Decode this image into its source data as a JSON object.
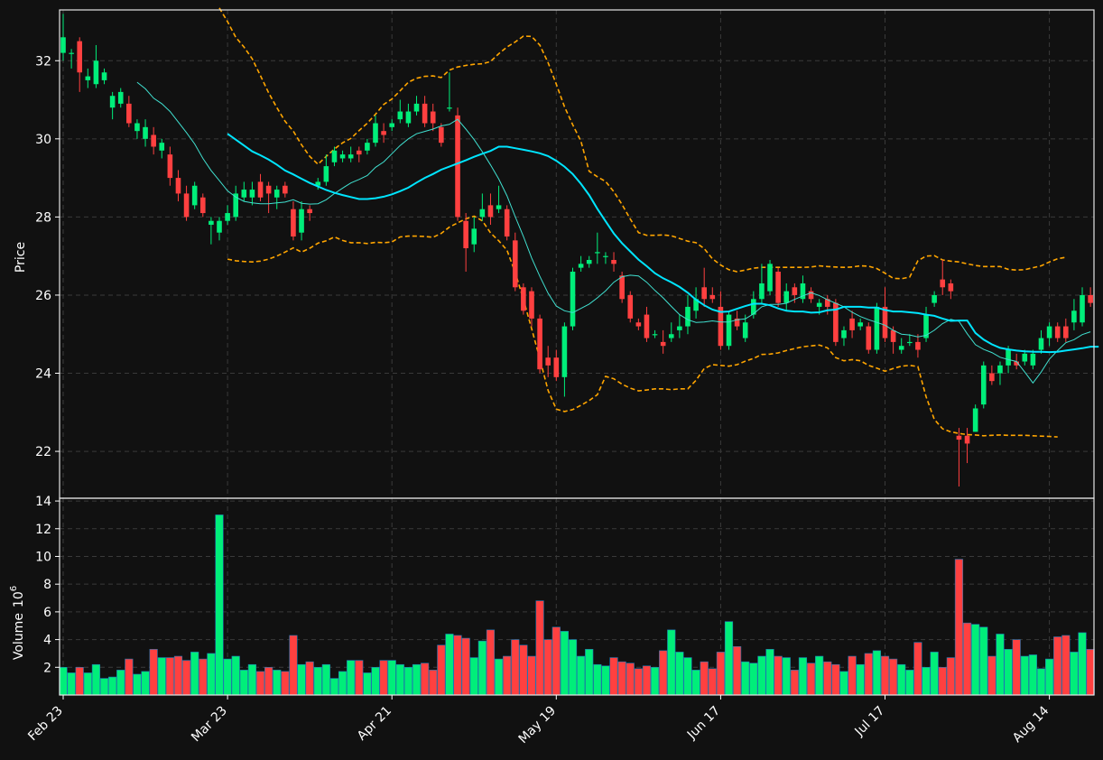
{
  "chart_data": {
    "type": "candlestick",
    "colors": {
      "background": "#111111",
      "up": "#00ee7a",
      "down": "#ff4040",
      "volume_edge": "#1f77b4",
      "ma_long": "#00e5ff",
      "ma_short": "#40e0d0",
      "bollinger": "#ffa500",
      "grid": "#3a3a3a",
      "text": "#ffffff"
    },
    "price_axis": {
      "label": "Price",
      "ylim": [
        20.8,
        33.3
      ],
      "ticks": [
        22,
        24,
        26,
        28,
        30,
        32
      ]
    },
    "volume_axis": {
      "label": "Volume",
      "unit_label": "10",
      "unit_exponent": "6",
      "ylim": [
        0,
        14.2
      ],
      "ticks": [
        2,
        4,
        6,
        8,
        10,
        12,
        14
      ]
    },
    "x_ticks": [
      {
        "index": 0,
        "label": "Feb 23"
      },
      {
        "index": 20,
        "label": "Mar 23"
      },
      {
        "index": 40,
        "label": "Apr 21"
      },
      {
        "index": 60,
        "label": "May 19"
      },
      {
        "index": 80,
        "label": "Jun 17"
      },
      {
        "index": 100,
        "label": "Jul 17"
      },
      {
        "index": 120,
        "label": "Aug 14"
      }
    ],
    "n_candles": 126,
    "grid": true,
    "ohlc": [
      [
        32.2,
        32.6,
        33.2,
        32.0
      ],
      [
        32.2,
        32.2,
        32.3,
        31.8
      ],
      [
        32.5,
        31.7,
        32.6,
        31.2
      ],
      [
        31.5,
        31.6,
        31.8,
        31.3
      ],
      [
        31.4,
        32.0,
        32.4,
        31.3
      ],
      [
        31.5,
        31.7,
        31.8,
        31.4
      ],
      [
        30.8,
        31.1,
        31.2,
        30.5
      ],
      [
        30.9,
        31.2,
        31.3,
        30.8
      ],
      [
        30.9,
        30.4,
        31.1,
        30.3
      ],
      [
        30.2,
        30.4,
        30.5,
        30.0
      ],
      [
        30.0,
        30.3,
        30.5,
        29.8
      ],
      [
        30.1,
        29.8,
        30.3,
        29.6
      ],
      [
        29.7,
        29.9,
        30.0,
        29.5
      ],
      [
        29.6,
        29.0,
        29.8,
        28.8
      ],
      [
        29.0,
        28.6,
        29.2,
        28.4
      ],
      [
        28.6,
        28.0,
        28.8,
        27.9
      ],
      [
        28.3,
        28.8,
        28.9,
        28.2
      ],
      [
        28.5,
        28.1,
        28.6,
        28.0
      ],
      [
        27.8,
        27.9,
        28.0,
        27.3
      ],
      [
        27.6,
        27.9,
        28.0,
        27.4
      ],
      [
        27.9,
        28.1,
        28.3,
        27.8
      ],
      [
        28.0,
        28.6,
        28.8,
        27.9
      ],
      [
        28.5,
        28.7,
        28.9,
        28.4
      ],
      [
        28.5,
        28.7,
        28.9,
        28.3
      ],
      [
        28.9,
        28.5,
        29.1,
        28.4
      ],
      [
        28.8,
        28.6,
        28.9,
        28.1
      ],
      [
        28.5,
        28.7,
        28.8,
        28.2
      ],
      [
        28.8,
        28.6,
        28.9,
        28.5
      ],
      [
        28.2,
        27.5,
        28.4,
        27.4
      ],
      [
        27.6,
        28.2,
        28.4,
        27.4
      ],
      [
        28.2,
        28.1,
        28.3,
        27.9
      ],
      [
        28.8,
        28.9,
        29.0,
        28.7
      ],
      [
        28.9,
        29.3,
        29.6,
        28.8
      ],
      [
        29.4,
        29.7,
        29.8,
        29.3
      ],
      [
        29.5,
        29.6,
        29.7,
        29.4
      ],
      [
        29.5,
        29.6,
        29.8,
        29.4
      ],
      [
        29.7,
        29.6,
        29.8,
        29.4
      ],
      [
        29.7,
        29.9,
        30.0,
        29.6
      ],
      [
        29.9,
        30.4,
        30.6,
        29.8
      ],
      [
        30.2,
        30.1,
        30.4,
        29.9
      ],
      [
        30.3,
        30.4,
        30.5,
        30.2
      ],
      [
        30.5,
        30.7,
        31.0,
        30.4
      ],
      [
        30.4,
        30.7,
        30.9,
        30.3
      ],
      [
        30.7,
        30.9,
        31.1,
        30.6
      ],
      [
        30.9,
        30.4,
        31.1,
        30.3
      ],
      [
        30.7,
        30.4,
        30.9,
        30.2
      ],
      [
        30.3,
        29.9,
        30.4,
        29.8
      ],
      [
        30.8,
        30.8,
        31.7,
        30.7
      ],
      [
        30.6,
        28.0,
        30.8,
        27.9
      ],
      [
        27.9,
        27.2,
        28.1,
        26.6
      ],
      [
        27.3,
        27.7,
        28.0,
        27.1
      ],
      [
        28.0,
        28.2,
        28.6,
        27.9
      ],
      [
        28.3,
        28.0,
        28.6,
        27.8
      ],
      [
        28.2,
        28.3,
        28.8,
        28.1
      ],
      [
        28.2,
        27.5,
        28.3,
        27.4
      ],
      [
        27.4,
        26.2,
        27.6,
        26.1
      ],
      [
        26.2,
        25.6,
        26.3,
        25.5
      ],
      [
        26.1,
        25.4,
        26.2,
        25.2
      ],
      [
        25.4,
        24.1,
        25.5,
        24.0
      ],
      [
        24.4,
        24.2,
        24.7,
        23.9
      ],
      [
        24.4,
        23.9,
        24.6,
        23.8
      ],
      [
        23.9,
        25.2,
        25.3,
        23.4
      ],
      [
        25.2,
        26.6,
        26.7,
        25.1
      ],
      [
        26.7,
        26.8,
        27.0,
        26.6
      ],
      [
        26.8,
        26.9,
        27.0,
        26.7
      ],
      [
        27.1,
        27.1,
        27.6,
        26.8
      ],
      [
        27.0,
        27.0,
        27.1,
        26.8
      ],
      [
        26.9,
        26.8,
        27.1,
        26.6
      ],
      [
        26.5,
        25.9,
        26.6,
        25.8
      ],
      [
        26.0,
        25.4,
        26.1,
        25.3
      ],
      [
        25.3,
        25.2,
        25.4,
        25.1
      ],
      [
        25.5,
        24.9,
        25.7,
        24.8
      ],
      [
        25.0,
        25.0,
        25.1,
        24.9
      ],
      [
        24.8,
        24.7,
        25.1,
        24.5
      ],
      [
        24.9,
        25.0,
        25.3,
        24.8
      ],
      [
        25.1,
        25.2,
        25.5,
        24.9
      ],
      [
        25.2,
        25.7,
        26.0,
        25.0
      ],
      [
        25.6,
        25.9,
        26.2,
        25.4
      ],
      [
        26.2,
        25.9,
        26.7,
        25.7
      ],
      [
        26.0,
        25.9,
        26.2,
        25.8
      ],
      [
        25.7,
        24.7,
        26.1,
        24.6
      ],
      [
        24.7,
        25.5,
        25.6,
        24.6
      ],
      [
        25.4,
        25.2,
        25.6,
        25.1
      ],
      [
        24.9,
        25.3,
        25.5,
        24.8
      ],
      [
        25.5,
        25.9,
        26.1,
        25.4
      ],
      [
        25.9,
        26.3,
        26.8,
        25.8
      ],
      [
        26.1,
        26.8,
        26.9,
        26.0
      ],
      [
        26.6,
        25.8,
        26.7,
        25.7
      ],
      [
        25.8,
        26.1,
        26.3,
        25.6
      ],
      [
        26.2,
        26.0,
        26.3,
        25.8
      ],
      [
        25.9,
        26.3,
        26.5,
        25.8
      ],
      [
        26.1,
        25.9,
        26.2,
        25.8
      ],
      [
        25.7,
        25.8,
        25.9,
        25.5
      ],
      [
        25.9,
        25.7,
        26.0,
        25.5
      ],
      [
        25.8,
        24.8,
        25.9,
        24.7
      ],
      [
        24.9,
        25.1,
        25.2,
        24.7
      ],
      [
        25.4,
        25.1,
        25.6,
        24.9
      ],
      [
        25.2,
        25.3,
        25.4,
        25.1
      ],
      [
        25.2,
        24.6,
        25.3,
        24.5
      ],
      [
        24.6,
        25.7,
        25.8,
        24.5
      ],
      [
        25.7,
        24.9,
        26.2,
        24.8
      ],
      [
        25.1,
        24.8,
        25.2,
        24.5
      ],
      [
        24.6,
        24.7,
        24.9,
        24.5
      ],
      [
        24.8,
        24.8,
        25.0,
        24.7
      ],
      [
        24.8,
        24.6,
        25.0,
        24.4
      ],
      [
        24.9,
        25.5,
        25.7,
        24.8
      ],
      [
        25.8,
        26.0,
        26.1,
        25.7
      ],
      [
        26.4,
        26.2,
        26.9,
        26.0
      ],
      [
        26.3,
        26.1,
        26.4,
        25.9
      ],
      [
        22.4,
        22.3,
        22.6,
        21.1
      ],
      [
        22.4,
        22.2,
        22.6,
        21.7
      ],
      [
        22.5,
        23.1,
        23.2,
        22.5
      ],
      [
        23.2,
        24.2,
        24.3,
        23.1
      ],
      [
        24.0,
        23.8,
        24.2,
        23.7
      ],
      [
        24.0,
        24.2,
        24.3,
        23.7
      ],
      [
        24.2,
        24.6,
        24.7,
        24.0
      ],
      [
        24.3,
        24.2,
        24.5,
        24.1
      ],
      [
        24.3,
        24.5,
        24.6,
        24.2
      ],
      [
        24.2,
        24.5,
        24.6,
        24.1
      ],
      [
        24.6,
        24.9,
        25.1,
        24.5
      ],
      [
        24.9,
        25.2,
        25.3,
        24.7
      ],
      [
        25.2,
        24.9,
        25.3,
        24.8
      ],
      [
        25.2,
        24.9,
        25.4,
        24.8
      ],
      [
        25.3,
        25.6,
        25.9,
        25.1
      ],
      [
        25.3,
        26.0,
        26.2,
        25.2
      ],
      [
        26.0,
        25.8,
        26.2,
        25.7
      ]
    ],
    "volume": [
      2.0,
      1.6,
      2.0,
      1.6,
      2.2,
      1.2,
      1.3,
      1.8,
      2.6,
      1.5,
      1.7,
      3.3,
      2.7,
      2.7,
      2.8,
      2.5,
      3.1,
      2.6,
      3.0,
      13.0,
      2.6,
      2.8,
      1.8,
      2.2,
      1.7,
      2.0,
      1.8,
      1.7,
      4.3,
      2.2,
      2.4,
      2.0,
      2.2,
      1.2,
      1.7,
      2.5,
      2.5,
      1.6,
      2.0,
      2.5,
      2.5,
      2.2,
      2.0,
      2.2,
      2.3,
      1.8,
      3.6,
      4.4,
      4.3,
      4.1,
      2.7,
      3.9,
      4.7,
      2.6,
      2.8,
      4.0,
      3.6,
      2.8,
      6.8,
      4.0,
      4.9,
      4.6,
      4.0,
      2.8,
      3.3,
      2.2,
      2.1,
      2.7,
      2.4,
      2.3,
      1.9,
      2.1,
      2.0,
      3.2,
      4.7,
      3.1,
      2.7,
      1.8,
      2.4,
      1.9,
      3.1,
      5.3,
      3.5,
      2.4,
      2.3,
      2.8,
      3.3,
      2.8,
      2.7,
      1.8,
      2.7,
      2.3,
      2.8,
      2.4,
      2.2,
      1.7,
      2.8,
      2.2,
      3.0,
      3.2,
      2.8,
      2.6,
      2.2,
      1.8,
      3.8,
      2.0,
      3.1,
      2.0,
      2.7,
      9.8,
      5.2,
      5.1,
      4.9,
      2.8,
      4.4,
      3.3,
      4.0,
      2.8,
      2.9,
      1.9,
      2.6,
      4.2,
      4.3,
      3.1,
      4.5,
      3.3
    ],
    "ma_long": [
      null,
      null,
      null,
      null,
      null,
      null,
      null,
      null,
      null,
      null,
      null,
      null,
      null,
      null,
      null,
      null,
      null,
      null,
      null,
      null,
      30.13,
      29.98,
      29.83,
      29.68,
      29.58,
      29.47,
      29.34,
      29.19,
      29.09,
      28.98,
      28.87,
      28.78,
      28.69,
      28.62,
      28.56,
      28.51,
      28.46,
      28.46,
      28.48,
      28.52,
      28.58,
      28.66,
      28.75,
      28.88,
      29.0,
      29.1,
      29.21,
      29.29,
      29.37,
      29.45,
      29.54,
      29.62,
      29.69,
      29.8,
      29.8,
      29.76,
      29.72,
      29.68,
      29.63,
      29.56,
      29.44,
      29.29,
      29.1,
      28.85,
      28.56,
      28.21,
      27.89,
      27.58,
      27.33,
      27.12,
      26.91,
      26.74,
      26.56,
      26.43,
      26.33,
      26.21,
      26.06,
      25.88,
      25.74,
      25.63,
      25.57,
      25.58,
      25.65,
      25.72,
      25.78,
      25.78,
      25.74,
      25.66,
      25.6,
      25.58,
      25.58,
      25.55,
      25.56,
      25.61,
      25.63,
      25.7,
      25.7,
      25.7,
      25.68,
      25.68,
      25.62,
      25.58,
      25.58,
      25.56,
      25.54,
      25.5,
      25.47,
      25.4,
      25.34,
      25.35,
      25.35,
      25.03,
      24.86,
      24.74,
      24.65,
      24.61,
      24.58,
      24.56,
      24.55,
      24.55,
      24.54,
      24.55,
      24.58,
      24.61,
      24.64,
      24.68,
      24.68
    ],
    "ma_short": [
      null,
      null,
      null,
      null,
      null,
      null,
      null,
      null,
      null,
      31.45,
      31.28,
      31.04,
      30.9,
      30.7,
      30.43,
      30.16,
      29.87,
      29.5,
      29.19,
      28.93,
      28.67,
      28.51,
      28.4,
      28.36,
      28.34,
      28.34,
      28.36,
      28.38,
      28.44,
      28.35,
      28.33,
      28.34,
      28.44,
      28.6,
      28.74,
      28.87,
      28.96,
      29.06,
      29.27,
      29.41,
      29.62,
      29.83,
      30.0,
      30.13,
      30.19,
      30.25,
      30.33,
      30.37,
      30.5,
      30.25,
      29.98,
      29.67,
      29.33,
      28.97,
      28.54,
      28.01,
      27.5,
      26.95,
      26.48,
      26.05,
      25.72,
      25.6,
      25.55,
      25.66,
      25.77,
      25.93,
      26.11,
      26.33,
      26.47,
      26.51,
      26.49,
      26.33,
      26.12,
      25.93,
      25.71,
      25.5,
      25.37,
      25.3,
      25.31,
      25.34,
      25.31,
      25.31,
      25.37,
      25.39,
      25.52,
      25.7,
      25.76,
      25.76,
      25.79,
      25.89,
      25.98,
      26.06,
      25.99,
      25.88,
      25.79,
      25.7,
      25.56,
      25.45,
      25.37,
      25.3,
      25.23,
      25.1,
      25.0,
      24.98,
      24.93,
      24.97,
      25.1,
      25.27,
      25.38,
      25.33,
      25.01,
      24.73,
      24.61,
      24.53,
      24.41,
      24.35,
      24.3,
      24.03,
      23.75,
      24.03,
      24.36,
      24.58,
      24.78,
      24.86,
      24.99,
      25.06
    ],
    "bb_upper": [
      null,
      null,
      null,
      null,
      null,
      null,
      null,
      null,
      null,
      null,
      null,
      null,
      null,
      null,
      null,
      null,
      null,
      null,
      null,
      33.35,
      33.0,
      32.6,
      32.35,
      32.05,
      31.62,
      31.18,
      30.8,
      30.45,
      30.2,
      29.85,
      29.55,
      29.35,
      29.55,
      29.74,
      29.9,
      30.01,
      30.21,
      30.4,
      30.63,
      30.88,
      31.02,
      31.23,
      31.45,
      31.55,
      31.6,
      31.61,
      31.57,
      31.76,
      31.84,
      31.88,
      31.91,
      31.92,
      31.98,
      32.18,
      32.35,
      32.48,
      32.63,
      32.62,
      32.4,
      31.95,
      31.4,
      30.82,
      30.36,
      29.94,
      29.17,
      29.03,
      28.91,
      28.65,
      28.32,
      27.95,
      27.6,
      27.53,
      27.53,
      27.54,
      27.52,
      27.45,
      27.38,
      27.34,
      27.19,
      26.93,
      26.77,
      26.65,
      26.6,
      26.64,
      26.69,
      26.71,
      26.71,
      26.71,
      26.71,
      26.71,
      26.71,
      26.72,
      26.75,
      26.73,
      26.72,
      26.71,
      26.72,
      26.75,
      26.74,
      26.68,
      26.56,
      26.43,
      26.42,
      26.46,
      26.88,
      27.0,
      27.01,
      26.9,
      26.87,
      26.85,
      26.8,
      26.76,
      26.73,
      26.73,
      26.73,
      26.66,
      26.64,
      26.65,
      26.7,
      26.75,
      26.85,
      26.93,
      26.97
    ],
    "bb_lower": [
      null,
      null,
      null,
      null,
      null,
      null,
      null,
      null,
      null,
      null,
      null,
      null,
      null,
      null,
      null,
      null,
      null,
      null,
      null,
      null,
      26.92,
      26.88,
      26.86,
      26.85,
      26.87,
      26.92,
      27.0,
      27.1,
      27.21,
      27.1,
      27.2,
      27.33,
      27.39,
      27.49,
      27.4,
      27.34,
      27.34,
      27.32,
      27.35,
      27.34,
      27.36,
      27.49,
      27.51,
      27.51,
      27.5,
      27.48,
      27.58,
      27.74,
      27.85,
      27.95,
      28.02,
      27.9,
      27.59,
      27.39,
      27.15,
      26.58,
      25.89,
      25.14,
      24.37,
      23.56,
      23.08,
      23.02,
      23.07,
      23.18,
      23.3,
      23.45,
      23.92,
      23.86,
      23.72,
      23.62,
      23.55,
      23.57,
      23.6,
      23.6,
      23.58,
      23.6,
      23.6,
      23.82,
      24.12,
      24.22,
      24.2,
      24.18,
      24.22,
      24.31,
      24.38,
      24.48,
      24.49,
      24.52,
      24.58,
      24.63,
      24.68,
      24.7,
      24.72,
      24.65,
      24.4,
      24.32,
      24.35,
      24.32,
      24.2,
      24.13,
      24.05,
      24.12,
      24.18,
      24.2,
      24.17,
      23.4,
      22.82,
      22.58,
      22.5,
      22.46,
      22.43,
      22.42,
      22.4,
      22.41,
      22.42,
      22.41,
      22.41,
      22.41,
      22.4,
      22.39,
      22.38,
      22.37
    ]
  }
}
